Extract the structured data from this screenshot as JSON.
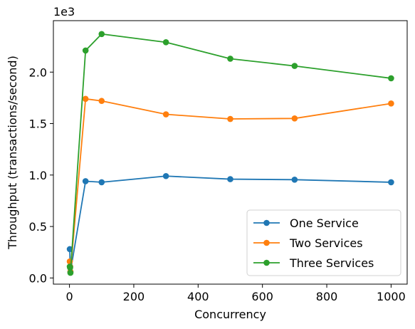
{
  "chart_data": {
    "type": "line",
    "title": "",
    "xlabel": "Concurrency",
    "ylabel": "Throughput (transactions/second)",
    "y_offset_label": "1e3",
    "xlim": [
      -50,
      1050
    ],
    "ylim": [
      -0.06,
      2.5
    ],
    "x_ticks": [
      0,
      200,
      400,
      600,
      800,
      1000
    ],
    "x_tick_labels": [
      "0",
      "200",
      "400",
      "600",
      "800",
      "1000"
    ],
    "y_ticks": [
      0.0,
      0.5,
      1.0,
      1.5,
      2.0
    ],
    "y_tick_labels": [
      "0.0",
      "0.5",
      "1.0",
      "1.5",
      "2.0"
    ],
    "grid": false,
    "legend_position": "lower-right",
    "x": [
      1,
      2,
      3,
      50,
      100,
      300,
      500,
      700,
      1000
    ],
    "series": [
      {
        "name": "One Service",
        "color": "#1f77b4",
        "marker": "circle",
        "values": [
          0.28,
          0.11,
          0.06,
          0.94,
          0.93,
          0.99,
          0.96,
          0.955,
          0.93
        ]
      },
      {
        "name": "Two Services",
        "color": "#ff7f0e",
        "marker": "circle",
        "values": [
          0.16,
          0.11,
          0.06,
          1.74,
          1.72,
          1.59,
          1.545,
          1.55,
          1.695
        ]
      },
      {
        "name": "Three Services",
        "color": "#2ca02c",
        "marker": "circle",
        "values": [
          0.11,
          0.1,
          0.05,
          2.21,
          2.37,
          2.29,
          2.13,
          2.06,
          1.94
        ]
      }
    ]
  }
}
